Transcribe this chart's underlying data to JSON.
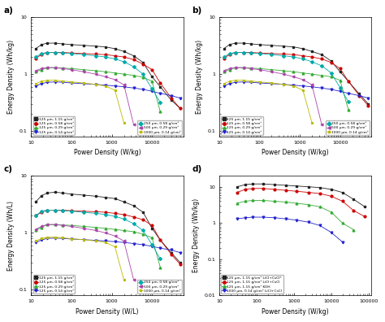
{
  "panel_a_b_c": {
    "series": [
      {
        "label": "125 μm, 1.15 g/cm³",
        "color": "#222222",
        "marker": "s",
        "x": [
          13,
          18,
          25,
          40,
          60,
          100,
          200,
          400,
          700,
          1200,
          2000,
          3500,
          6000,
          10000,
          16000,
          30000,
          50000
        ],
        "y_a": [
          2.8,
          3.3,
          3.5,
          3.5,
          3.4,
          3.3,
          3.2,
          3.1,
          3.0,
          2.8,
          2.5,
          2.1,
          1.6,
          0.9,
          0.6,
          0.35,
          0.25
        ],
        "y_b": [
          2.8,
          3.3,
          3.5,
          3.5,
          3.4,
          3.3,
          3.2,
          3.1,
          3.0,
          2.8,
          2.5,
          2.2,
          1.7,
          1.1,
          0.75,
          0.45,
          0.3
        ],
        "y_c": [
          3.5,
          4.5,
          5.0,
          5.2,
          5.0,
          4.8,
          4.6,
          4.4,
          4.2,
          4.0,
          3.5,
          3.0,
          2.3,
          1.2,
          0.75,
          0.45,
          0.3
        ]
      },
      {
        "label": "125 μm, 0.58 g/cm³",
        "color": "#cc0000",
        "marker": "o",
        "x": [
          13,
          18,
          25,
          40,
          60,
          100,
          200,
          400,
          700,
          1200,
          2000,
          3500,
          6000,
          10000,
          16000,
          30000,
          50000
        ],
        "y_a": [
          1.9,
          2.2,
          2.4,
          2.4,
          2.4,
          2.35,
          2.3,
          2.25,
          2.2,
          2.1,
          2.0,
          1.8,
          1.5,
          1.2,
          0.7,
          0.38,
          0.25
        ],
        "y_b": [
          1.9,
          2.2,
          2.4,
          2.4,
          2.4,
          2.35,
          2.3,
          2.25,
          2.2,
          2.1,
          2.0,
          1.85,
          1.6,
          1.25,
          0.75,
          0.42,
          0.28
        ],
        "y_c": [
          2.0,
          2.3,
          2.5,
          2.5,
          2.5,
          2.45,
          2.4,
          2.35,
          2.3,
          2.2,
          2.1,
          1.9,
          1.7,
          1.35,
          0.75,
          0.42,
          0.28
        ]
      },
      {
        "label": "125 μm, 0.29 g/cm³",
        "color": "#33aa33",
        "marker": "^",
        "x": [
          13,
          18,
          25,
          40,
          60,
          100,
          200,
          400,
          700,
          1200,
          2000,
          3500,
          6000,
          10000,
          16000,
          30000
        ],
        "y_a": [
          1.1,
          1.2,
          1.3,
          1.3,
          1.28,
          1.25,
          1.2,
          1.15,
          1.1,
          1.05,
          1.0,
          0.95,
          0.88,
          0.75,
          0.22,
          null
        ],
        "y_b": [
          1.1,
          1.2,
          1.3,
          1.3,
          1.28,
          1.25,
          1.2,
          1.15,
          1.1,
          1.05,
          1.0,
          0.95,
          0.9,
          0.78,
          0.24,
          null
        ],
        "y_c": [
          1.1,
          1.25,
          1.4,
          1.4,
          1.38,
          1.35,
          1.3,
          1.25,
          1.2,
          1.15,
          1.1,
          1.05,
          0.95,
          0.82,
          0.25,
          null
        ]
      },
      {
        "label": "125 μm, 0.14 g/cm³",
        "color": "#2222cc",
        "marker": "v",
        "x": [
          13,
          18,
          25,
          40,
          60,
          100,
          200,
          400,
          700,
          1200,
          2000,
          3500,
          6000,
          10000,
          16000,
          30000,
          50000
        ],
        "y_a": [
          0.62,
          0.68,
          0.72,
          0.73,
          0.72,
          0.7,
          0.68,
          0.66,
          0.64,
          0.62,
          0.6,
          0.57,
          0.54,
          0.5,
          0.46,
          0.42,
          0.38
        ],
        "y_b": [
          0.62,
          0.68,
          0.72,
          0.73,
          0.72,
          0.7,
          0.68,
          0.66,
          0.64,
          0.62,
          0.6,
          0.57,
          0.54,
          0.5,
          0.46,
          0.42,
          0.38
        ],
        "y_c": [
          0.68,
          0.75,
          0.8,
          0.81,
          0.8,
          0.78,
          0.76,
          0.74,
          0.72,
          0.7,
          0.68,
          0.65,
          0.62,
          0.58,
          0.54,
          0.5,
          0.45
        ]
      },
      {
        "label": "250 μm, 0.58 g/cm³",
        "color": "#00aaaa",
        "marker": "D",
        "x": [
          13,
          18,
          25,
          40,
          60,
          100,
          200,
          400,
          700,
          1200,
          2000,
          3500,
          6000,
          10000,
          16000,
          30000
        ],
        "y_a": [
          2.0,
          2.3,
          2.4,
          2.4,
          2.35,
          2.3,
          2.2,
          2.1,
          2.0,
          1.85,
          1.65,
          1.35,
          1.0,
          0.55,
          0.32,
          null
        ],
        "y_b": [
          2.0,
          2.3,
          2.4,
          2.4,
          2.35,
          2.3,
          2.2,
          2.1,
          2.0,
          1.85,
          1.65,
          1.4,
          1.05,
          0.58,
          0.33,
          null
        ],
        "y_c": [
          2.0,
          2.4,
          2.5,
          2.5,
          2.45,
          2.4,
          2.3,
          2.2,
          2.1,
          1.95,
          1.75,
          1.45,
          1.1,
          0.62,
          0.35,
          null
        ]
      },
      {
        "label": "500 μm, 0.29 g/cm³",
        "color": "#aa44aa",
        "marker": "<",
        "x": [
          13,
          18,
          25,
          40,
          60,
          100,
          200,
          400,
          700,
          1200,
          2000,
          3500,
          6000
        ],
        "y_a": [
          1.15,
          1.25,
          1.3,
          1.3,
          1.25,
          1.2,
          1.1,
          1.0,
          0.9,
          0.8,
          0.65,
          0.13,
          null
        ],
        "y_b": [
          1.15,
          1.25,
          1.3,
          1.3,
          1.25,
          1.2,
          1.1,
          1.0,
          0.9,
          0.8,
          0.65,
          0.13,
          null
        ],
        "y_c": [
          1.15,
          1.3,
          1.4,
          1.4,
          1.35,
          1.3,
          1.2,
          1.1,
          1.0,
          0.88,
          0.72,
          0.15,
          null
        ]
      },
      {
        "label": "1000 μm, 0.14 g/cm³",
        "color": "#bbbb00",
        "marker": "*",
        "x": [
          13,
          18,
          25,
          40,
          60,
          100,
          200,
          400,
          700,
          1200,
          2000,
          3000
        ],
        "y_a": [
          0.68,
          0.75,
          0.78,
          0.78,
          0.76,
          0.73,
          0.7,
          0.66,
          0.62,
          0.52,
          0.14,
          null
        ],
        "y_b": [
          0.68,
          0.75,
          0.78,
          0.78,
          0.76,
          0.73,
          0.7,
          0.66,
          0.62,
          0.52,
          0.14,
          null
        ],
        "y_c": [
          0.72,
          0.8,
          0.84,
          0.84,
          0.82,
          0.79,
          0.76,
          0.72,
          0.68,
          0.57,
          0.15,
          null
        ]
      }
    ]
  },
  "panel_d": {
    "series": [
      {
        "label": "125 μm, 1.15 g/cm³ LiCl+CsCl*",
        "color": "#222222",
        "marker": "s",
        "x": [
          30,
          50,
          80,
          150,
          300,
          600,
          1200,
          2500,
          5000,
          10000,
          20000,
          40000,
          80000
        ],
        "y": [
          10.0,
          11.5,
          12.0,
          12.0,
          11.5,
          11.0,
          10.5,
          10.0,
          9.5,
          8.5,
          7.0,
          4.5,
          2.8
        ]
      },
      {
        "label": "125 μm, 1.15 g/cm³ LiCl+CsCl",
        "color": "#cc0000",
        "marker": "o",
        "x": [
          30,
          50,
          80,
          150,
          300,
          600,
          1200,
          2500,
          5000,
          10000,
          20000,
          40000,
          80000
        ],
        "y": [
          7.0,
          8.5,
          9.0,
          9.0,
          8.5,
          8.0,
          7.5,
          7.0,
          6.5,
          5.5,
          4.0,
          2.2,
          1.5
        ]
      },
      {
        "label": "125 μm, 1.15 g/cm³ KOH",
        "color": "#33aa33",
        "marker": "^",
        "x": [
          30,
          50,
          80,
          150,
          300,
          600,
          1200,
          2500,
          5000,
          10000,
          20000,
          40000
        ],
        "y": [
          3.5,
          4.0,
          4.2,
          4.2,
          4.0,
          3.8,
          3.5,
          3.2,
          2.8,
          2.0,
          1.0,
          0.65
        ]
      },
      {
        "label": "1000 μm, 0.14 g/cm³ LiCl+CsCl",
        "color": "#2222cc",
        "marker": "v",
        "x": [
          30,
          50,
          80,
          150,
          300,
          600,
          1200,
          2500,
          5000,
          10000,
          20000,
          30000
        ],
        "y": [
          1.3,
          1.4,
          1.45,
          1.45,
          1.4,
          1.3,
          1.2,
          1.05,
          0.85,
          0.55,
          0.3,
          null
        ]
      }
    ]
  },
  "xlim_abc": [
    10,
    60000
  ],
  "xlim_d": [
    10,
    120000
  ],
  "ylim_abc": [
    0.08,
    10
  ],
  "ylim_d": [
    0.08,
    20
  ],
  "ylabel_ab": "Energy Density (Wh/kg)",
  "ylabel_c": "Energy Density (Wh/L)",
  "ylabel_d": "Energy Density (Wh/kg)",
  "xlabel_abc": "Power Density (W/kg)",
  "xlabel_c": "Power Density (W/L)",
  "xlabel_d": "Power Density (W/kg)"
}
